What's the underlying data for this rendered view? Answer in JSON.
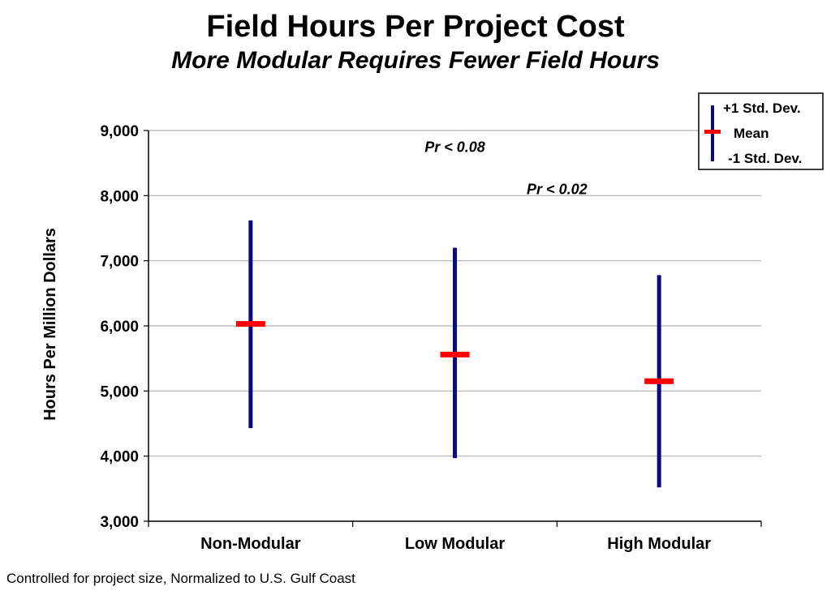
{
  "title": "Field Hours Per Project Cost",
  "subtitle": "More Modular Requires Fewer Field Hours",
  "footnote": "Controlled for project size, Normalized to U.S. Gulf Coast",
  "colors": {
    "range": "#0a0a7a",
    "mean": "#ff0000",
    "grid": "#b0b0b0"
  },
  "chart_data": {
    "type": "error-bar",
    "title": "Field Hours Per Project Cost",
    "subtitle": "More Modular Requires Fewer Field Hours",
    "ylabel": "Hours Per Million Dollars",
    "xlabel": "",
    "ylim": [
      3000,
      9000
    ],
    "yticks": [
      3000,
      4000,
      5000,
      6000,
      7000,
      8000,
      9000
    ],
    "ytick_labels": [
      "3,000",
      "4,000",
      "5,000",
      "6,000",
      "7,000",
      "8,000",
      "9,000"
    ],
    "grid": true,
    "categories": [
      "Non-Modular",
      "Low Modular",
      "High Modular"
    ],
    "mean": [
      6030,
      5560,
      5150
    ],
    "plus_1_sd": [
      7620,
      7200,
      6780
    ],
    "minus_1_sd": [
      4430,
      3970,
      3520
    ],
    "annotations": [
      {
        "text": "Pr < 0.08",
        "x_between": [
          "Non-Modular",
          "High Modular"
        ],
        "y": 8670
      },
      {
        "text": "Pr < 0.02",
        "x_between": [
          "Low Modular",
          "High Modular"
        ],
        "y": 8020
      }
    ],
    "legend": {
      "position": "top-right",
      "entries": [
        "+1 Std. Dev.",
        "Mean",
        "-1 Std. Dev."
      ]
    }
  }
}
